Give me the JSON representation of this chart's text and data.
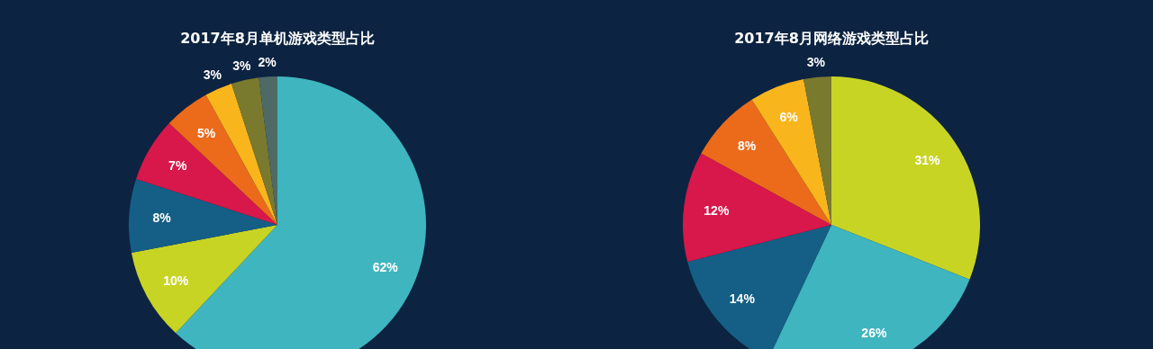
{
  "chart_data": [
    {
      "type": "pie",
      "title": "2017年8月单机游戏类型占比",
      "categories": [
        null,
        null,
        null,
        null,
        null,
        null,
        null,
        null
      ],
      "values": [
        62,
        10,
        8,
        7,
        5,
        3,
        3,
        2
      ],
      "value_labels": [
        "62%",
        "10%",
        "8%",
        "7%",
        "5%",
        "3%",
        "3%",
        "2%"
      ],
      "colors": [
        "#3fb5bf",
        "#c8d424",
        "#155f86",
        "#d8174a",
        "#ec6b1a",
        "#f9b51c",
        "#7a7a2e",
        "#4e6a66"
      ]
    },
    {
      "type": "pie",
      "title": "2017年8月网络游戏类型占比",
      "categories": [
        null,
        null,
        null,
        null,
        null,
        null,
        null
      ],
      "values": [
        31,
        26,
        14,
        12,
        8,
        6,
        3
      ],
      "value_labels": [
        "31%",
        "26%",
        "14%",
        "12%",
        "8%",
        "6%",
        "3%"
      ],
      "colors": [
        "#c8d424",
        "#3fb5bf",
        "#155f86",
        "#d8174a",
        "#ec6b1a",
        "#f9b51c",
        "#7a7a2e"
      ]
    }
  ]
}
